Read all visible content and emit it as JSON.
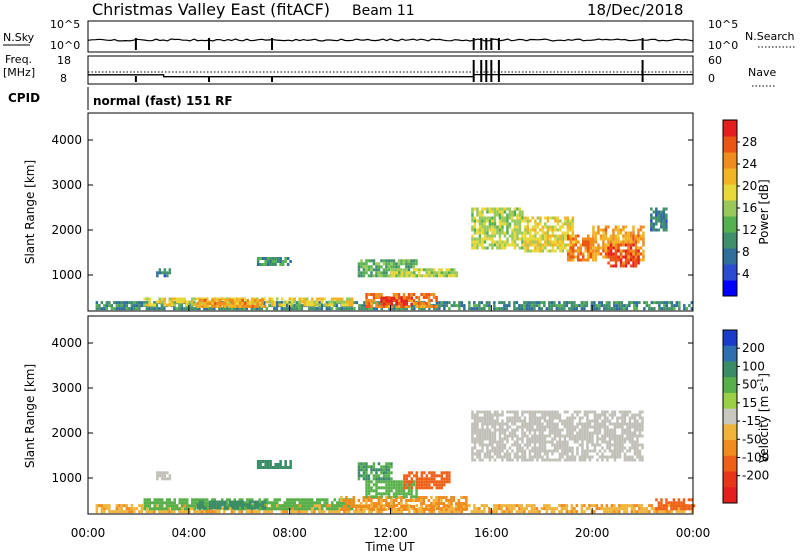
{
  "header": {
    "title": "Christmas Valley East (fitACF)",
    "beam": "Beam 11",
    "date": "18/Dec/2018"
  },
  "status_panels": {
    "nsky_label": "N.Sky",
    "nsearch_label": "N.Search",
    "nsky_ticks": [
      "10^5",
      "10^0"
    ],
    "nsearch_ticks": [
      "10^5",
      "10^0"
    ],
    "freq_label_1": "Freq.",
    "freq_label_2": "[MHz]",
    "freq_ticks": [
      "18",
      "8"
    ],
    "nave_label": "Nave",
    "nave_ticks": [
      "60",
      "0"
    ],
    "cpid_label": "CPID",
    "cpid_text": "normal (fast) 151 RF"
  },
  "colors": {
    "power_scale": [
      "#0000ff",
      "#2b4bd0",
      "#2f6e9a",
      "#3f8f6a",
      "#55b050",
      "#98c95a",
      "#e8d83a",
      "#f2b423",
      "#f08c1e",
      "#ea5514",
      "#e51e1e"
    ],
    "velocity_scale": [
      "#1a3cc8",
      "#2f6fb0",
      "#3a8c66",
      "#57b04a",
      "#9ad043",
      "#c8c8c0",
      "#f0b43a",
      "#f08c1e",
      "#ee6018",
      "#e83418",
      "#e51e1e"
    ],
    "ground_scatter": "#c0c0b8"
  },
  "chart_data": [
    {
      "type": "heatmap",
      "panel": "power",
      "ylabel": "Slant Range [km]",
      "yticks": [
        "1000",
        "2000",
        "3000",
        "4000"
      ],
      "ylim": [
        200,
        4600
      ],
      "xlim_hours": [
        0,
        24
      ],
      "colorbar_label": "Power [dB]",
      "colorbar_ticks": [
        "4",
        "8",
        "12",
        "16",
        "20",
        "24",
        "28"
      ],
      "colorbar_range": [
        0,
        30
      ],
      "regions": [
        {
          "t0": 0.3,
          "t1": 24.0,
          "r0": 250,
          "r1": 420,
          "value": 9
        },
        {
          "t0": 2.2,
          "t1": 10.5,
          "r0": 300,
          "r1": 500,
          "value": 18
        },
        {
          "t0": 4.3,
          "t1": 7.0,
          "r0": 330,
          "r1": 470,
          "value": 22
        },
        {
          "t0": 11.0,
          "t1": 13.8,
          "r0": 300,
          "r1": 600,
          "value": 24
        },
        {
          "t0": 11.6,
          "t1": 12.8,
          "r0": 330,
          "r1": 520,
          "value": 28
        },
        {
          "t0": 2.7,
          "t1": 3.2,
          "r0": 1000,
          "r1": 1150,
          "value": 8
        },
        {
          "t0": 6.7,
          "t1": 8.0,
          "r0": 1200,
          "r1": 1400,
          "value": 10
        },
        {
          "t0": 10.7,
          "t1": 13.0,
          "r0": 1000,
          "r1": 1350,
          "value": 12
        },
        {
          "t0": 12.0,
          "t1": 14.6,
          "r0": 950,
          "r1": 1150,
          "value": 16
        },
        {
          "t0": 15.2,
          "t1": 17.2,
          "r0": 1600,
          "r1": 2500,
          "value": 16
        },
        {
          "t0": 17.3,
          "t1": 19.2,
          "r0": 1500,
          "r1": 2300,
          "value": 18
        },
        {
          "t0": 19.0,
          "t1": 20.0,
          "r0": 1300,
          "r1": 1900,
          "value": 24
        },
        {
          "t0": 20.0,
          "t1": 22.0,
          "r0": 1300,
          "r1": 2100,
          "value": 22
        },
        {
          "t0": 20.6,
          "t1": 21.8,
          "r0": 1200,
          "r1": 1700,
          "value": 27
        },
        {
          "t0": 22.3,
          "t1": 22.9,
          "r0": 2000,
          "r1": 2500,
          "value": 8
        }
      ]
    },
    {
      "type": "heatmap",
      "panel": "velocity",
      "ylabel": "Slant Range [km]",
      "yticks": [
        "1000",
        "2000",
        "3000",
        "4000"
      ],
      "ylim": [
        200,
        4600
      ],
      "xlim_hours": [
        0,
        24
      ],
      "xticks": [
        "00:00",
        "04:00",
        "08:00",
        "12:00",
        "16:00",
        "20:00",
        "00:00"
      ],
      "xlabel": "Time UT",
      "colorbar_label": "Velocity [m s-1]",
      "colorbar_label_parts": [
        "Velocity [m s",
        "-1",
        "]"
      ],
      "colorbar_ticks": [
        "200",
        "100",
        "50",
        "15",
        "-15",
        "-50",
        "-100",
        "-200"
      ],
      "regions": [
        {
          "t0": 0.3,
          "t1": 24.0,
          "r0": 250,
          "r1": 420,
          "value": -30
        },
        {
          "t0": 2.2,
          "t1": 10.5,
          "r0": 300,
          "r1": 550,
          "value": 40
        },
        {
          "t0": 4.3,
          "t1": 7.0,
          "r0": 330,
          "r1": 500,
          "value": 60
        },
        {
          "t0": 10.0,
          "t1": 15.0,
          "r0": 300,
          "r1": 600,
          "value": -40
        },
        {
          "t0": 11.0,
          "t1": 13.0,
          "r0": 600,
          "r1": 950,
          "value": 40
        },
        {
          "t0": 12.5,
          "t1": 14.3,
          "r0": 800,
          "r1": 1150,
          "value": -60
        },
        {
          "t0": 6.7,
          "t1": 8.0,
          "r0": 1200,
          "r1": 1400,
          "value": 60
        },
        {
          "t0": 10.7,
          "t1": 12.0,
          "r0": 1000,
          "r1": 1350,
          "value": 50
        },
        {
          "t0": 15.2,
          "t1": 22.0,
          "r0": 1400,
          "r1": 2500,
          "value": "ground"
        },
        {
          "t0": 2.7,
          "t1": 3.2,
          "r0": 1000,
          "r1": 1150,
          "value": "ground"
        },
        {
          "t0": 22.5,
          "t1": 24.0,
          "r0": 300,
          "r1": 550,
          "value": -60
        }
      ]
    }
  ],
  "nsky_series": {
    "hours": [
      0,
      2,
      4,
      6,
      8,
      10,
      12,
      14,
      15,
      16,
      18,
      20,
      22,
      24
    ],
    "level": [
      0.25,
      0.3,
      0.3,
      0.28,
      0.3,
      0.32,
      0.3,
      0.28,
      0.3,
      0.35,
      0.3,
      0.3,
      0.3,
      0.3
    ]
  },
  "freq_series": {
    "hours": [
      0,
      3.0,
      3.0,
      15.3,
      15.3,
      24
    ],
    "mhz": [
      11.0,
      11.0,
      10.2,
      10.2,
      11.1,
      11.1
    ]
  },
  "scan_markers_hours": [
    1.9,
    4.8,
    7.3,
    15.3,
    15.6,
    15.8,
    16.0,
    16.3,
    22.0
  ]
}
